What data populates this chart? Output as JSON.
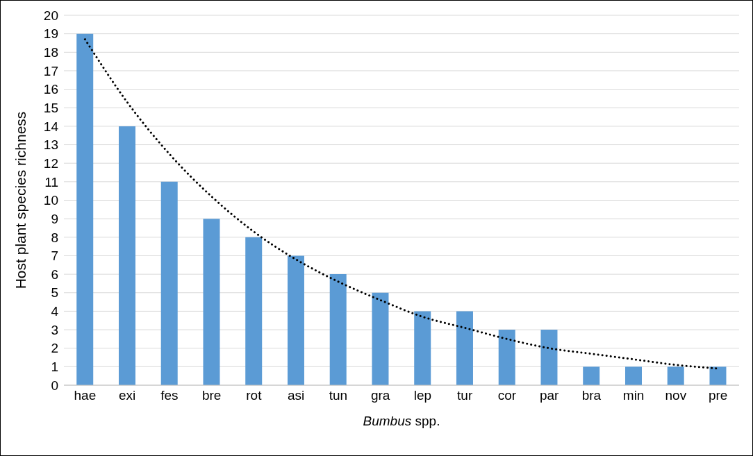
{
  "chart_data": {
    "type": "bar",
    "xlabel": "Bumbus spp.",
    "ylabel": "Host plant species richness",
    "categories": [
      "hae",
      "exi",
      "fes",
      "bre",
      "rot",
      "asi",
      "tun",
      "gra",
      "lep",
      "tur",
      "cor",
      "par",
      "bra",
      "min",
      "nov",
      "pre"
    ],
    "series": [
      {
        "color": "#5b9bd5",
        "values": [
          19,
          14,
          11,
          9,
          8,
          7,
          6,
          5,
          4,
          4,
          3,
          3,
          1,
          1,
          1,
          1
        ]
      },
      {
        "type": "line",
        "color": "#000000",
        "line_style": "dotted",
        "marker": "none",
        "values": [
          18.7,
          15.3,
          12.5,
          10.2,
          8.3,
          6.8,
          5.6,
          4.6,
          3.7,
          3.1,
          2.5,
          2.0,
          1.7,
          1.4,
          1.1,
          0.9
        ]
      }
    ],
    "ylim": [
      0,
      20
    ],
    "yticks": [
      0,
      1,
      2,
      3,
      4,
      5,
      6,
      7,
      8,
      9,
      10,
      11,
      12,
      13,
      14,
      15,
      16,
      17,
      18,
      19,
      20
    ],
    "grid": "y",
    "legend": false
  }
}
